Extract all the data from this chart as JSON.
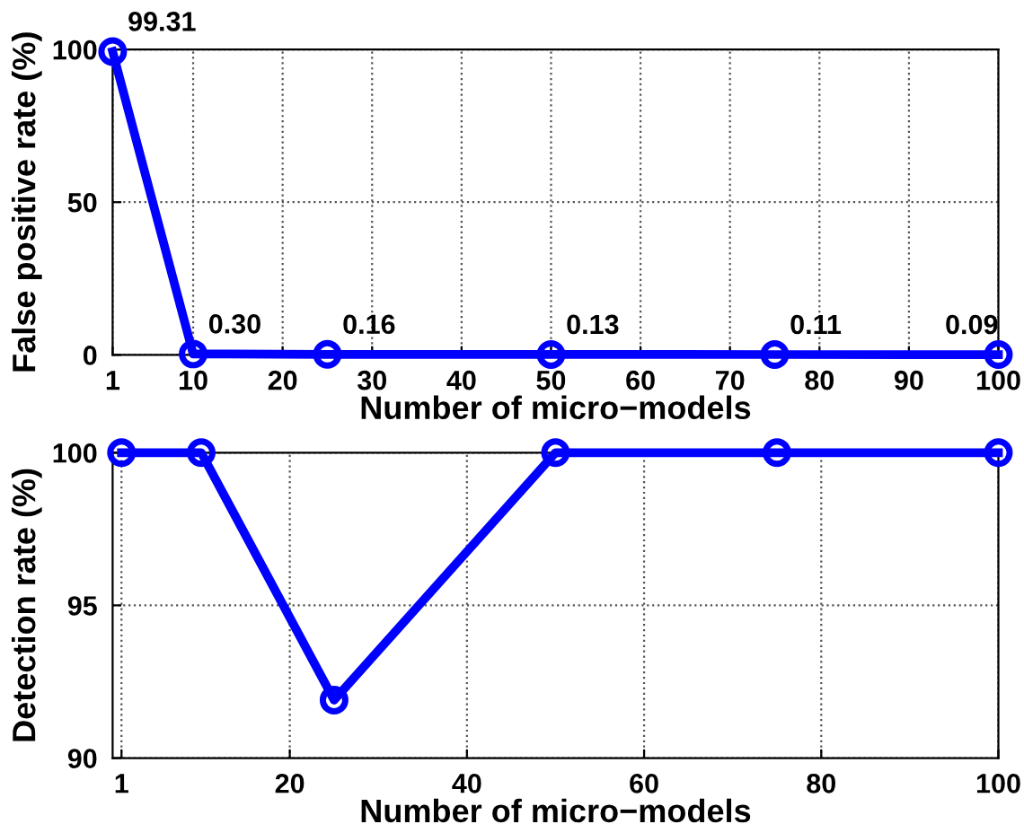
{
  "chart_data": [
    {
      "type": "line",
      "xlabel": "Number of micro−models",
      "ylabel": "False positive rate (%)",
      "x": [
        1,
        10,
        25,
        50,
        75,
        100
      ],
      "series": [
        {
          "color": "#0000ff",
          "values": [
            99.31,
            0.3,
            0.16,
            0.13,
            0.11,
            0.09
          ],
          "value_labels": [
            "99.31",
            "0.30",
            "0.16",
            "0.13",
            "0.11",
            "0.09"
          ]
        }
      ],
      "xlim": [
        1,
        100
      ],
      "xticks": [
        1,
        10,
        20,
        30,
        40,
        50,
        60,
        70,
        80,
        90,
        100
      ],
      "ylim": [
        0,
        100
      ],
      "yticks": [
        0,
        50,
        100
      ],
      "grid": true,
      "marker": "circle",
      "line_style": "solid"
    },
    {
      "type": "line",
      "xlabel": "Number of micro−models",
      "ylabel": "Detection rate (%)",
      "x": [
        1,
        10,
        25,
        50,
        75,
        100
      ],
      "series": [
        {
          "color": "#0000ff",
          "values": [
            100,
            100,
            91.9,
            100,
            100,
            100
          ]
        }
      ],
      "xlim": [
        0,
        100
      ],
      "xticks": [
        1,
        20,
        40,
        60,
        80,
        100
      ],
      "ylim": [
        90,
        100
      ],
      "yticks": [
        90,
        95,
        100
      ],
      "grid": true,
      "marker": "circle",
      "line_style": "solid"
    }
  ]
}
